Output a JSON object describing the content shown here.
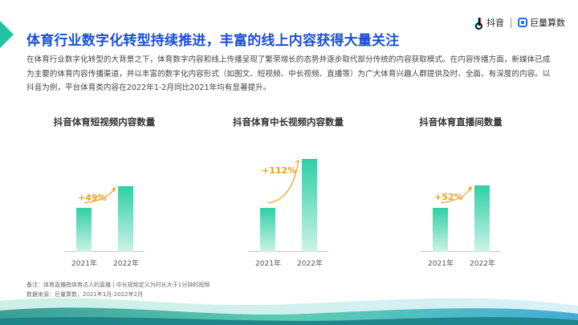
{
  "header": {
    "title": "体育行业数字化转型持续推进，丰富的线上内容获得大量关注",
    "logo_douyin": "抖音",
    "logo_juliang": "巨量算数"
  },
  "description": "在体育行业数字化转型的大背景之下，体育数字内容和线上传播呈现了繁荣增长的态势并逐步取代部分传统的内容获取模式。在内容传播方面，新媒体已成为主要的体育内容传播渠道，并以丰富的数字化内容形式（如图文、短视频、中长视频、直播等）为广大体育兴趣人群提供及时、全面、有深度的内容。以抖音为例，平台体育类内容在2022年1-2月同比2021年均有显著提升。",
  "footnote": {
    "note": "备注：体育直播指体育达人的直播 | 中长视频定义为时长大于1分钟的视频",
    "source": "数据来源：巨量算数，2021年1月-2022年2月"
  },
  "colors": {
    "title": "#1a4fd6",
    "accent": "#22c3a3",
    "growth": "#f0a020"
  },
  "chart_data": [
    {
      "type": "bar",
      "title": "抖音体育短视频内容数量",
      "categories": [
        "2021年",
        "2022年"
      ],
      "values": [
        1.0,
        1.49
      ],
      "growth_label": "+49%"
    },
    {
      "type": "bar",
      "title": "抖音体育中长视频内容数量",
      "categories": [
        "2021年",
        "2022年"
      ],
      "values": [
        1.0,
        2.12
      ],
      "growth_label": "+112%"
    },
    {
      "type": "bar",
      "title": "抖音体育直播间数量",
      "categories": [
        "2021年",
        "2022年"
      ],
      "values": [
        1.0,
        1.52
      ],
      "growth_label": "+52%"
    }
  ]
}
